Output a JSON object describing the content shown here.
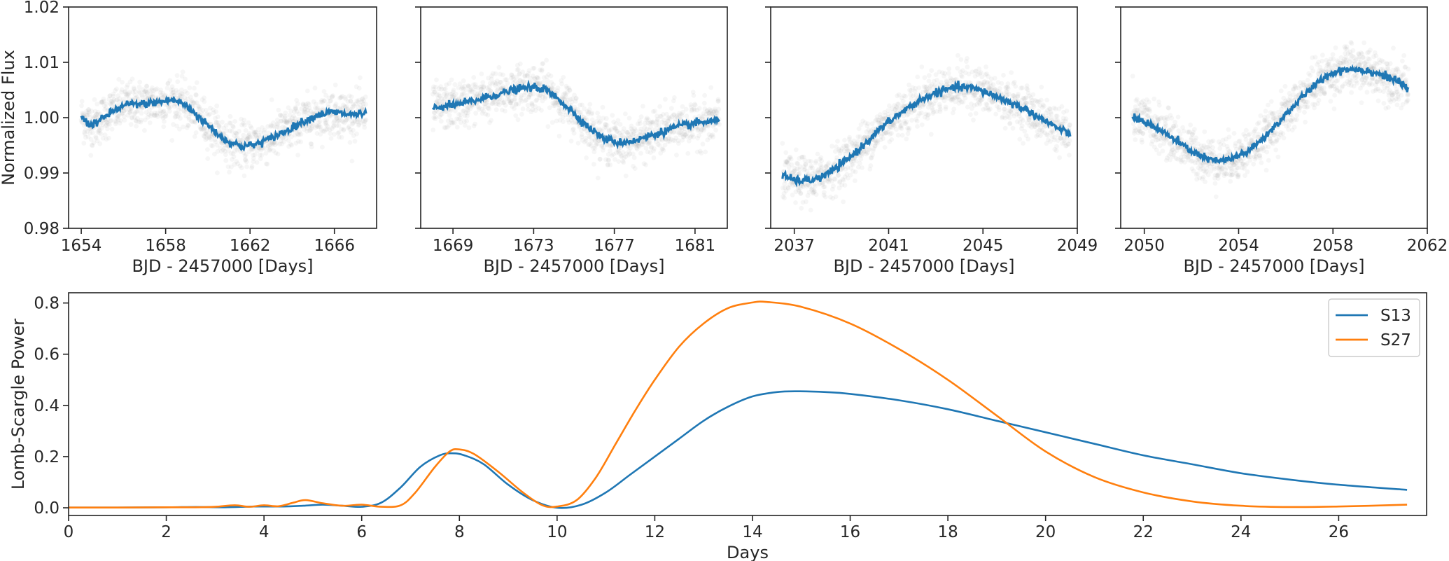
{
  "chart_data": [
    {
      "type": "scatter",
      "panel": "lightcurve-1",
      "ylabel": "Normalized Flux",
      "xlabel": "BJD - 2457000 [Days]",
      "xlim": [
        1653.4,
        1668.0
      ],
      "ylim": [
        0.98,
        1.02
      ],
      "xticks": [
        1654,
        1658,
        1662,
        1666
      ],
      "yticks": [
        0.98,
        0.99,
        1.0,
        1.01,
        1.02
      ],
      "ytick_labels": [
        "0.98",
        "0.99",
        "1.00",
        "1.01",
        "1.02"
      ],
      "x_start": 1654.0,
      "x_end": 1667.5,
      "model": [
        [
          1654.0,
          1.0002
        ],
        [
          1654.4,
          0.9986
        ],
        [
          1654.9,
          0.9995
        ],
        [
          1655.5,
          1.0012
        ],
        [
          1656.2,
          1.0024
        ],
        [
          1657.0,
          1.0025
        ],
        [
          1657.7,
          1.0028
        ],
        [
          1658.3,
          1.0032
        ],
        [
          1658.8,
          1.0026
        ],
        [
          1659.4,
          1.0008
        ],
        [
          1660.1,
          0.9983
        ],
        [
          1660.8,
          0.996
        ],
        [
          1661.6,
          0.9948
        ],
        [
          1662.3,
          0.9952
        ],
        [
          1663.0,
          0.9963
        ],
        [
          1663.8,
          0.9978
        ],
        [
          1664.5,
          0.9993
        ],
        [
          1665.2,
          1.0005
        ],
        [
          1665.9,
          1.001
        ],
        [
          1666.6,
          1.0006
        ],
        [
          1667.5,
          1.0006
        ]
      ],
      "scatter_sigma": 0.0035
    },
    {
      "type": "scatter",
      "panel": "lightcurve-2",
      "xlabel": "BJD - 2457000 [Days]",
      "xlim": [
        1667.4,
        1682.6
      ],
      "ylim": [
        0.98,
        1.02
      ],
      "xticks": [
        1669,
        1673,
        1677,
        1681
      ],
      "x_start": 1668.0,
      "x_end": 1682.2,
      "model": [
        [
          1668.0,
          1.0018
        ],
        [
          1669.0,
          1.0022
        ],
        [
          1670.0,
          1.003
        ],
        [
          1671.0,
          1.004
        ],
        [
          1672.0,
          1.005
        ],
        [
          1672.8,
          1.0055
        ],
        [
          1673.5,
          1.0052
        ],
        [
          1674.2,
          1.0035
        ],
        [
          1675.0,
          1.0008
        ],
        [
          1675.8,
          0.998
        ],
        [
          1676.5,
          0.9962
        ],
        [
          1677.2,
          0.9955
        ],
        [
          1678.0,
          0.9958
        ],
        [
          1679.0,
          0.997
        ],
        [
          1680.0,
          0.9982
        ],
        [
          1681.0,
          0.999
        ],
        [
          1682.2,
          0.9995
        ]
      ],
      "scatter_sigma": 0.0035
    },
    {
      "type": "scatter",
      "panel": "lightcurve-3",
      "xlabel": "BJD - 2457000 [Days]",
      "xlim": [
        2036.0,
        2049.0
      ],
      "ylim": [
        0.98,
        1.02
      ],
      "xticks": [
        2037,
        2041,
        2045,
        2049
      ],
      "x_start": 2036.5,
      "x_end": 2048.7,
      "model": [
        [
          2036.5,
          0.9895
        ],
        [
          2037.0,
          0.9887
        ],
        [
          2037.6,
          0.9886
        ],
        [
          2038.2,
          0.9893
        ],
        [
          2039.0,
          0.9915
        ],
        [
          2039.8,
          0.9945
        ],
        [
          2040.6,
          0.9978
        ],
        [
          2041.4,
          1.0005
        ],
        [
          2042.2,
          1.0028
        ],
        [
          2043.0,
          1.0045
        ],
        [
          2043.8,
          1.0055
        ],
        [
          2044.4,
          1.0055
        ],
        [
          2045.2,
          1.0045
        ],
        [
          2046.0,
          1.003
        ],
        [
          2046.8,
          1.0015
        ],
        [
          2047.6,
          0.9995
        ],
        [
          2048.3,
          0.9978
        ],
        [
          2048.7,
          0.997
        ]
      ],
      "scatter_sigma": 0.0035
    },
    {
      "type": "scatter",
      "panel": "lightcurve-4",
      "xlabel": "BJD - 2457000 [Days]",
      "xlim": [
        2049.0,
        2062.0
      ],
      "ylim": [
        0.98,
        1.02
      ],
      "xticks": [
        2050,
        2054,
        2058,
        2062
      ],
      "x_start": 2049.5,
      "x_end": 2061.2,
      "model": [
        [
          2049.5,
          1.0
        ],
        [
          2050.2,
          0.999
        ],
        [
          2051.0,
          0.9968
        ],
        [
          2051.8,
          0.9945
        ],
        [
          2052.5,
          0.9928
        ],
        [
          2053.1,
          0.9921
        ],
        [
          2053.8,
          0.9926
        ],
        [
          2054.6,
          0.9945
        ],
        [
          2055.4,
          0.9978
        ],
        [
          2056.2,
          1.0015
        ],
        [
          2057.0,
          1.005
        ],
        [
          2057.8,
          1.0078
        ],
        [
          2058.5,
          1.0088
        ],
        [
          2059.2,
          1.0087
        ],
        [
          2059.9,
          1.008
        ],
        [
          2060.6,
          1.0068
        ],
        [
          2061.2,
          1.0052
        ]
      ],
      "scatter_sigma": 0.0035
    },
    {
      "type": "line",
      "panel": "periodogram",
      "xlabel": "Days",
      "ylabel": "Lomb-Scargle Power",
      "xlim": [
        0,
        27.8
      ],
      "ylim": [
        -0.03,
        0.84
      ],
      "xticks": [
        0,
        2,
        4,
        6,
        8,
        10,
        12,
        14,
        16,
        18,
        20,
        22,
        24,
        26
      ],
      "yticks": [
        0.0,
        0.2,
        0.4,
        0.6,
        0.8
      ],
      "ytick_labels": [
        "0.0",
        "0.2",
        "0.4",
        "0.6",
        "0.8"
      ],
      "legend": "top-right",
      "series": [
        {
          "name": "S13",
          "color": "#1f77b4",
          "points": [
            [
              0,
              0.001
            ],
            [
              1,
              0.001
            ],
            [
              2,
              0.002
            ],
            [
              2.6,
              0.003
            ],
            [
              3.2,
              0.002
            ],
            [
              3.8,
              0.005
            ],
            [
              4.4,
              0.005
            ],
            [
              4.8,
              0.008
            ],
            [
              5.2,
              0.012
            ],
            [
              5.6,
              0.008
            ],
            [
              6.0,
              0.004
            ],
            [
              6.4,
              0.02
            ],
            [
              6.8,
              0.08
            ],
            [
              7.2,
              0.16
            ],
            [
              7.6,
              0.205
            ],
            [
              7.85,
              0.213
            ],
            [
              8.1,
              0.205
            ],
            [
              8.5,
              0.17
            ],
            [
              9.0,
              0.09
            ],
            [
              9.5,
              0.03
            ],
            [
              10.0,
              0.0
            ],
            [
              10.5,
              0.012
            ],
            [
              11.0,
              0.06
            ],
            [
              11.5,
              0.13
            ],
            [
              12.0,
              0.2
            ],
            [
              12.5,
              0.27
            ],
            [
              13.0,
              0.34
            ],
            [
              13.5,
              0.395
            ],
            [
              14.0,
              0.435
            ],
            [
              14.5,
              0.452
            ],
            [
              14.9,
              0.455
            ],
            [
              15.5,
              0.452
            ],
            [
              16.0,
              0.445
            ],
            [
              17.0,
              0.42
            ],
            [
              18.0,
              0.385
            ],
            [
              19.0,
              0.34
            ],
            [
              20.0,
              0.295
            ],
            [
              21.0,
              0.25
            ],
            [
              22.0,
              0.205
            ],
            [
              23.0,
              0.17
            ],
            [
              24.0,
              0.135
            ],
            [
              25.0,
              0.11
            ],
            [
              26.0,
              0.09
            ],
            [
              27.4,
              0.07
            ]
          ]
        },
        {
          "name": "S27",
          "color": "#ff7f0e",
          "points": [
            [
              0,
              0.001
            ],
            [
              1,
              0.001
            ],
            [
              2,
              0.002
            ],
            [
              2.6,
              0.002
            ],
            [
              3.0,
              0.004
            ],
            [
              3.4,
              0.01
            ],
            [
              3.7,
              0.004
            ],
            [
              4.0,
              0.01
            ],
            [
              4.3,
              0.006
            ],
            [
              4.6,
              0.02
            ],
            [
              4.85,
              0.03
            ],
            [
              5.2,
              0.018
            ],
            [
              5.6,
              0.008
            ],
            [
              6.0,
              0.012
            ],
            [
              6.4,
              0.004
            ],
            [
              6.8,
              0.01
            ],
            [
              7.1,
              0.06
            ],
            [
              7.5,
              0.16
            ],
            [
              7.8,
              0.22
            ],
            [
              8.0,
              0.228
            ],
            [
              8.3,
              0.21
            ],
            [
              8.8,
              0.14
            ],
            [
              9.3,
              0.06
            ],
            [
              9.7,
              0.01
            ],
            [
              10.0,
              0.005
            ],
            [
              10.4,
              0.03
            ],
            [
              10.8,
              0.12
            ],
            [
              11.2,
              0.25
            ],
            [
              11.6,
              0.38
            ],
            [
              12.0,
              0.5
            ],
            [
              12.5,
              0.63
            ],
            [
              13.0,
              0.72
            ],
            [
              13.5,
              0.78
            ],
            [
              14.0,
              0.802
            ],
            [
              14.3,
              0.804
            ],
            [
              15.0,
              0.785
            ],
            [
              16.0,
              0.72
            ],
            [
              17.0,
              0.62
            ],
            [
              18.0,
              0.5
            ],
            [
              19.0,
              0.36
            ],
            [
              20.0,
              0.22
            ],
            [
              21.0,
              0.12
            ],
            [
              22.0,
              0.06
            ],
            [
              23.0,
              0.025
            ],
            [
              24.0,
              0.008
            ],
            [
              25.0,
              0.003
            ],
            [
              26.0,
              0.005
            ],
            [
              27.4,
              0.012
            ]
          ]
        }
      ]
    }
  ]
}
